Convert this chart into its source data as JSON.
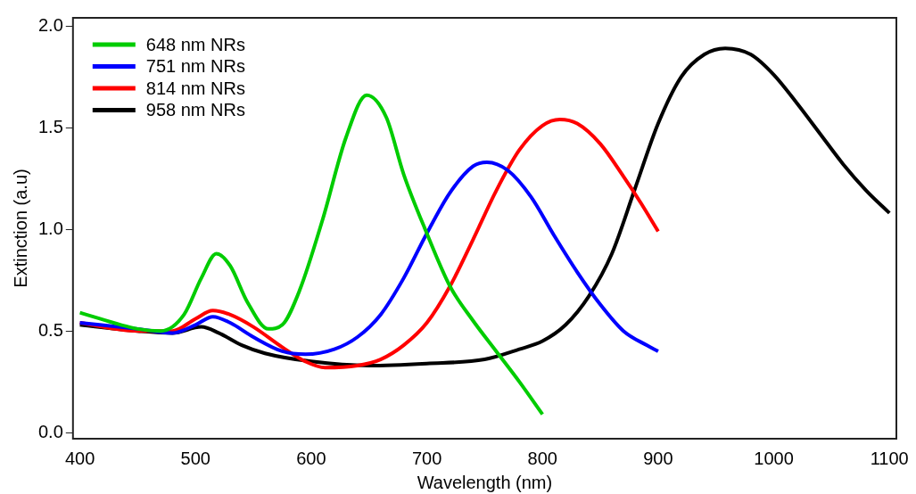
{
  "chart_data": {
    "type": "line",
    "xlabel": "Wavelength (nm)",
    "ylabel": "Extinction (a.u)",
    "xlim": [
      394,
      1106
    ],
    "ylim": [
      -0.03,
      2.04
    ],
    "xticks": [
      400,
      500,
      600,
      700,
      800,
      900,
      1000,
      1100
    ],
    "yticks": [
      {
        "value": 0,
        "label": "0.0"
      },
      0.5,
      {
        "value": 1,
        "label": "1.0"
      },
      1.5,
      {
        "value": 2,
        "label": "2.0"
      }
    ],
    "grid": false,
    "legend": "top left",
    "marker": "none",
    "line_style": "solid",
    "series": [
      {
        "name": "648 nm NRs",
        "color": "#00cc00",
        "x": [
          400,
          450,
          470,
          490,
          505,
          518,
          530,
          545,
          563,
          575,
          590,
          610,
          630,
          648,
          665,
          680,
          700,
          720,
          740,
          760,
          780,
          800
        ],
        "values": [
          0.59,
          0.51,
          0.5,
          0.58,
          0.76,
          0.88,
          0.82,
          0.64,
          0.51,
          0.53,
          0.7,
          1.05,
          1.45,
          1.66,
          1.55,
          1.27,
          0.98,
          0.72,
          0.55,
          0.4,
          0.25,
          0.09
        ]
      },
      {
        "name": "751 nm NRs",
        "color": "#0000ff",
        "x": [
          400,
          450,
          480,
          500,
          515,
          530,
          550,
          575,
          595,
          620,
          640,
          660,
          680,
          700,
          720,
          740,
          752,
          770,
          790,
          810,
          830,
          850,
          870,
          890,
          900
        ],
        "values": [
          0.54,
          0.51,
          0.49,
          0.53,
          0.57,
          0.54,
          0.47,
          0.4,
          0.385,
          0.41,
          0.47,
          0.58,
          0.76,
          0.98,
          1.18,
          1.31,
          1.33,
          1.29,
          1.16,
          0.97,
          0.79,
          0.63,
          0.5,
          0.43,
          0.4
        ]
      },
      {
        "name": "814 nm NRs",
        "color": "#ff0000",
        "x": [
          400,
          450,
          480,
          500,
          515,
          530,
          550,
          575,
          595,
          612,
          640,
          660,
          680,
          700,
          720,
          740,
          760,
          780,
          800,
          815,
          830,
          850,
          870,
          885,
          900
        ],
        "values": [
          0.54,
          0.5,
          0.5,
          0.56,
          0.6,
          0.58,
          0.52,
          0.42,
          0.35,
          0.32,
          0.33,
          0.36,
          0.43,
          0.54,
          0.72,
          0.95,
          1.19,
          1.39,
          1.51,
          1.54,
          1.52,
          1.42,
          1.26,
          1.13,
          0.99
        ]
      },
      {
        "name": "958 nm NRs",
        "color": "#000000",
        "x": [
          400,
          450,
          480,
          505,
          520,
          540,
          560,
          600,
          650,
          700,
          750,
          780,
          800,
          820,
          840,
          860,
          880,
          900,
          920,
          940,
          958,
          980,
          1000,
          1020,
          1040,
          1060,
          1080,
          1100
        ],
        "values": [
          0.53,
          0.5,
          0.49,
          0.52,
          0.49,
          0.43,
          0.39,
          0.35,
          0.33,
          0.34,
          0.36,
          0.41,
          0.45,
          0.53,
          0.67,
          0.88,
          1.2,
          1.52,
          1.75,
          1.86,
          1.89,
          1.86,
          1.76,
          1.62,
          1.47,
          1.32,
          1.19,
          1.08
        ]
      }
    ]
  }
}
